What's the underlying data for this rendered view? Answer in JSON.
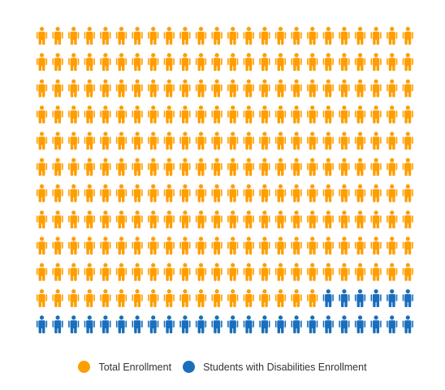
{
  "chart_data": {
    "type": "pictograph",
    "grid": {
      "columns": 24,
      "rows": 12
    },
    "series": [
      {
        "name": "Total Enrollment",
        "count": 258,
        "color": "#FF9E00"
      },
      {
        "name": "Students with Disabilities Enrollment",
        "count": 30,
        "color": "#1A6EBD"
      }
    ],
    "legend_position": "bottom"
  }
}
